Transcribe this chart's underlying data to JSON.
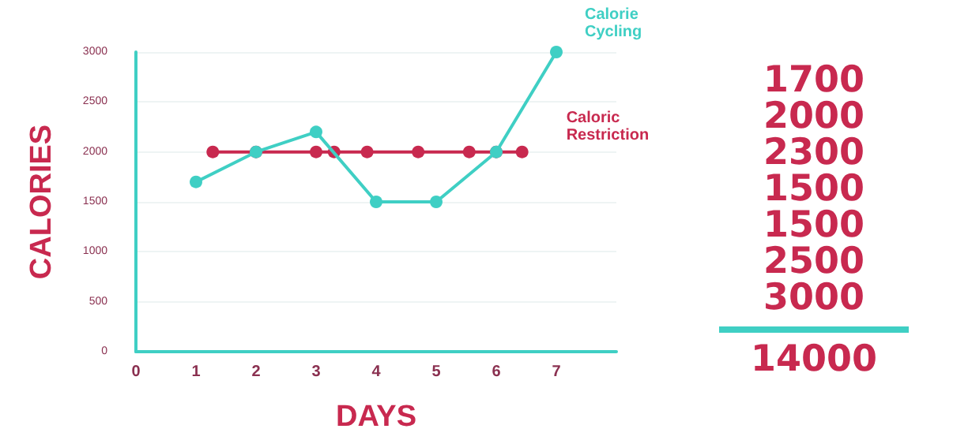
{
  "chart_data": {
    "type": "line",
    "xlabel": "DAYS",
    "ylabel": "CALORIES",
    "xlim": [
      0,
      8
    ],
    "xticks": [
      0,
      1,
      2,
      3,
      4,
      5,
      6,
      7
    ],
    "ylim": [
      0,
      3000
    ],
    "yticks": [
      0,
      500,
      1000,
      1500,
      2000,
      2500,
      3000
    ],
    "grid": "y",
    "legend": false,
    "marker": "circle",
    "line_style": "solid",
    "series": [
      {
        "name": "Calorie Cycling",
        "color": "#3fcfc4",
        "x": [
          1,
          2,
          3,
          4,
          5,
          6,
          7
        ],
        "values": [
          1700,
          2000,
          2200,
          1500,
          1500,
          2000,
          3000
        ]
      },
      {
        "name": "Caloric Restriction",
        "color": "#c8294f",
        "x": [
          1.28,
          2,
          3,
          3.3,
          3.85,
          4.7,
          5.55,
          6,
          6.43
        ],
        "values": [
          2000,
          2000,
          2000,
          2000,
          2000,
          2000,
          2000,
          2000,
          2000
        ]
      }
    ],
    "annotations": [
      "1700",
      "2000",
      "2300",
      "1500",
      "1500",
      "2500",
      "3000",
      "14000"
    ]
  }
}
